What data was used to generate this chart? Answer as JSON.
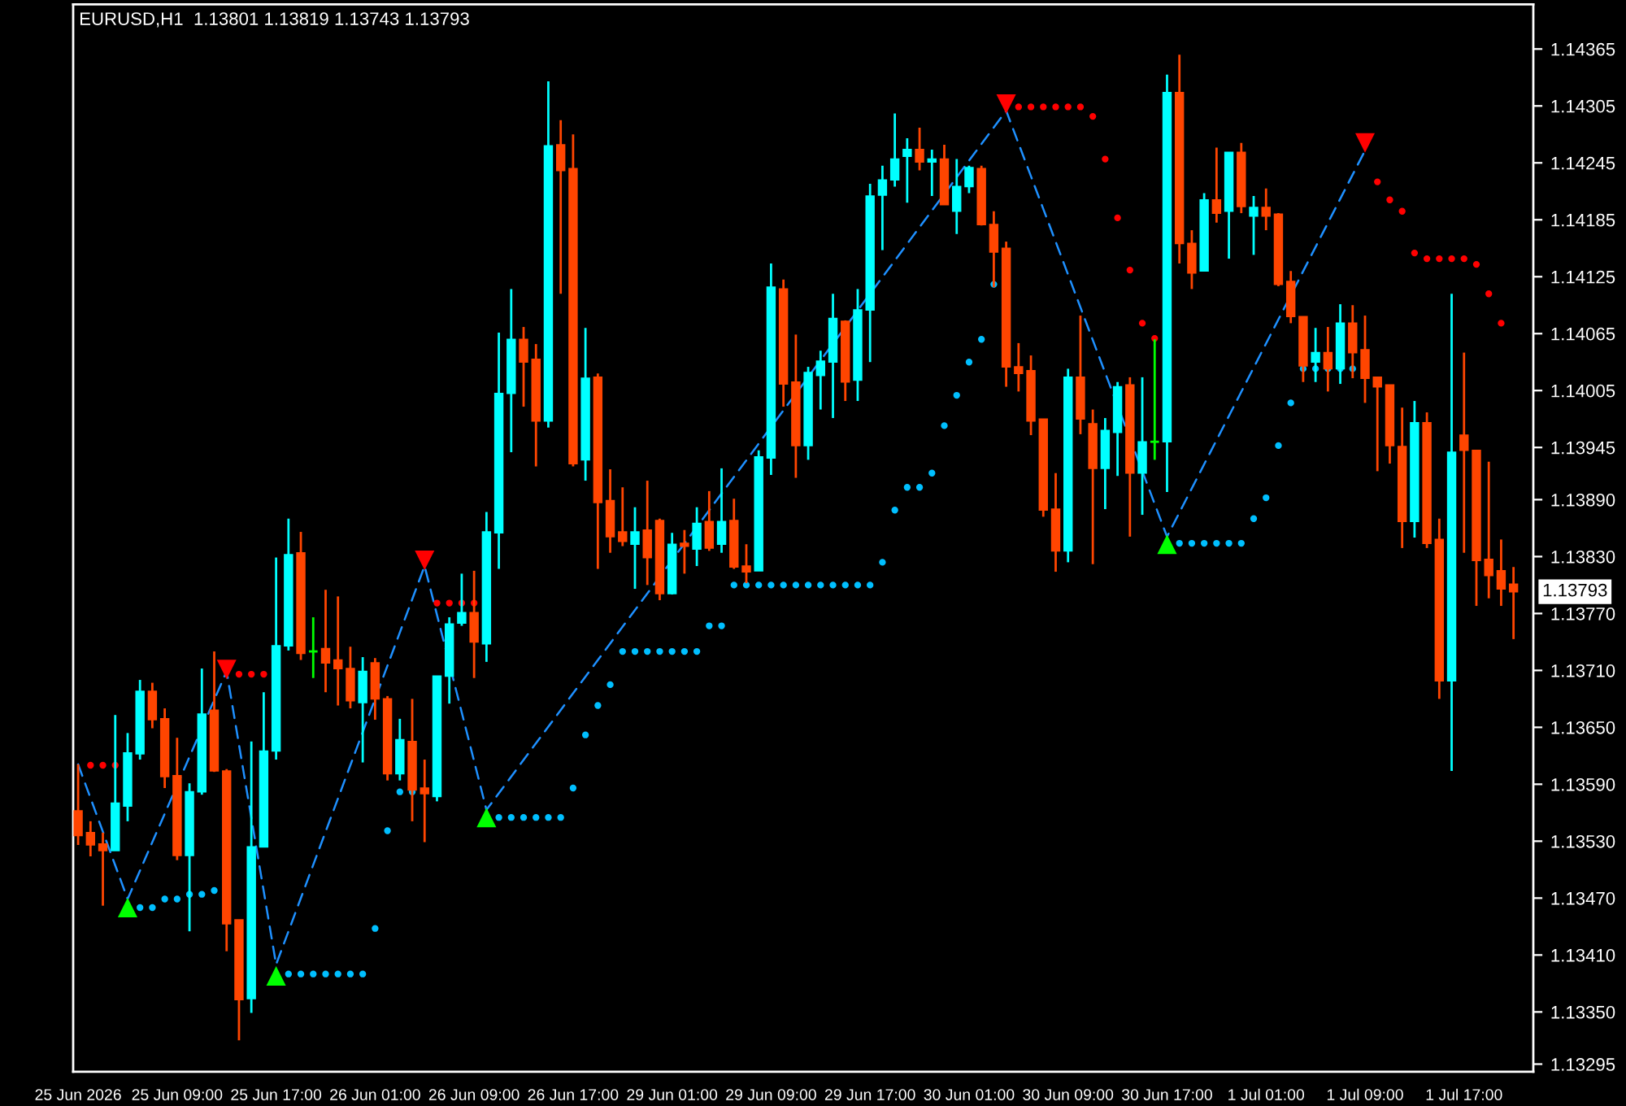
{
  "chart_data": {
    "type": "candlestick",
    "title": "EURUSD,H1  1.13801 1.13819 1.13743 1.13793",
    "categories": [
      "25 Jun 2026",
      null,
      null,
      null,
      null,
      null,
      null,
      null,
      "25 Jun 09:00",
      null,
      null,
      null,
      null,
      null,
      null,
      null,
      "25 Jun 17:00",
      null,
      null,
      null,
      null,
      null,
      null,
      null,
      "26 Jun 01:00",
      null,
      null,
      null,
      null,
      null,
      null,
      null,
      "26 Jun 09:00",
      null,
      null,
      null,
      null,
      null,
      null,
      null,
      "26 Jun 17:00",
      null,
      null,
      null,
      null,
      null,
      null,
      null,
      "29 Jun 01:00",
      null,
      null,
      null,
      null,
      null,
      null,
      null,
      "29 Jun 09:00",
      null,
      null,
      null,
      null,
      null,
      null,
      null,
      "29 Jun 17:00",
      null,
      null,
      null,
      null,
      null,
      null,
      null,
      "30 Jun 01:00",
      null,
      null,
      null,
      null,
      null,
      null,
      null,
      "30 Jun 09:00",
      null,
      null,
      null,
      null,
      null,
      null,
      null,
      "30 Jun 17:00",
      null,
      null,
      null,
      null,
      null,
      null,
      null,
      "1 Jul 01:00",
      null,
      null,
      null,
      null,
      null,
      null,
      null,
      "1 Jul 09:00",
      null,
      null,
      null,
      null,
      null,
      null,
      null,
      "1 Jul 17:00",
      null,
      null,
      null,
      null
    ],
    "ohlc": [
      [
        1.13562,
        1.13611,
        1.13526,
        1.13536
      ],
      [
        1.13539,
        1.13551,
        1.13514,
        1.13526
      ],
      [
        1.13527,
        1.13539,
        1.13462,
        1.1352
      ],
      [
        1.1352,
        1.13663,
        1.1352,
        1.1357
      ],
      [
        1.13567,
        1.13644,
        1.13551,
        1.13623
      ],
      [
        1.13622,
        1.137,
        1.13616,
        1.13688
      ],
      [
        1.13688,
        1.13697,
        1.13649,
        1.13658
      ],
      [
        1.13659,
        1.1367,
        1.13586,
        1.13598
      ],
      [
        1.13599,
        1.13639,
        1.1351,
        1.13515
      ],
      [
        1.13515,
        1.13591,
        1.13435,
        1.13582
      ],
      [
        1.13582,
        1.13712,
        1.13579,
        1.13664
      ],
      [
        1.13668,
        1.1373,
        1.13603,
        1.13604
      ],
      [
        1.13604,
        1.13606,
        1.13414,
        1.13443
      ],
      [
        1.13447,
        1.13447,
        1.1332,
        1.13363
      ],
      [
        1.13364,
        1.13635,
        1.13349,
        1.13524
      ],
      [
        1.13524,
        1.13687,
        1.13524,
        1.13625
      ],
      [
        1.13625,
        1.13829,
        1.13616,
        1.13736
      ],
      [
        1.13736,
        1.1387,
        1.13731,
        1.13832
      ],
      [
        1.13834,
        1.13856,
        1.13721,
        1.13728
      ],
      [
        1.1373,
        1.13766,
        1.13702,
        1.1373
      ],
      [
        1.13733,
        1.13795,
        1.13687,
        1.13718
      ],
      [
        1.13721,
        1.13788,
        1.13673,
        1.13712
      ],
      [
        1.13712,
        1.13735,
        1.1367,
        1.13678
      ],
      [
        1.13676,
        1.13724,
        1.13613,
        1.13709
      ],
      [
        1.13718,
        1.13723,
        1.13658,
        1.1368
      ],
      [
        1.1368,
        1.13683,
        1.13594,
        1.13601
      ],
      [
        1.13601,
        1.13659,
        1.13594,
        1.13637
      ],
      [
        1.13635,
        1.1368,
        1.13551,
        1.13584
      ],
      [
        1.13586,
        1.13616,
        1.13529,
        1.1358
      ],
      [
        1.13577,
        1.13704,
        1.13572,
        1.13704
      ],
      [
        1.13704,
        1.13766,
        1.13675,
        1.13759
      ],
      [
        1.1376,
        1.13812,
        1.13757,
        1.13771
      ],
      [
        1.13771,
        1.13815,
        1.13702,
        1.1374
      ],
      [
        1.13738,
        1.13877,
        1.13719,
        1.13856
      ],
      [
        1.13855,
        1.14066,
        1.13817,
        1.14002
      ],
      [
        1.14002,
        1.14112,
        1.1394,
        1.14059
      ],
      [
        1.14059,
        1.14072,
        1.13988,
        1.14035
      ],
      [
        1.14038,
        1.14054,
        1.13925,
        1.13973
      ],
      [
        1.13973,
        1.14331,
        1.13966,
        1.14263
      ],
      [
        1.14264,
        1.1429,
        1.14107,
        1.14237
      ],
      [
        1.14239,
        1.14275,
        1.13925,
        1.13928
      ],
      [
        1.13932,
        1.14071,
        1.1391,
        1.14018
      ],
      [
        1.14019,
        1.14023,
        1.13817,
        1.13887
      ],
      [
        1.13889,
        1.13922,
        1.13834,
        1.13851
      ],
      [
        1.13856,
        1.13903,
        1.13841,
        1.13846
      ],
      [
        1.13843,
        1.13882,
        1.13796,
        1.13856
      ],
      [
        1.13858,
        1.1391,
        1.138,
        1.13829
      ],
      [
        1.13868,
        1.1387,
        1.13784,
        1.13791
      ],
      [
        1.13791,
        1.13855,
        1.1379,
        1.13843
      ],
      [
        1.13844,
        1.13858,
        1.13812,
        1.13841
      ],
      [
        1.13838,
        1.13882,
        1.1382,
        1.13865
      ],
      [
        1.13867,
        1.13899,
        1.13836,
        1.13839
      ],
      [
        1.13843,
        1.13923,
        1.13834,
        1.13867
      ],
      [
        1.13868,
        1.13891,
        1.13817,
        1.13819
      ],
      [
        1.1382,
        1.13843,
        1.13802,
        1.13814
      ],
      [
        1.13815,
        1.13942,
        1.13815,
        1.13935
      ],
      [
        1.13934,
        1.14139,
        1.13916,
        1.14114
      ],
      [
        1.14112,
        1.14122,
        1.13988,
        1.14012
      ],
      [
        1.14014,
        1.14064,
        1.13913,
        1.13947
      ],
      [
        1.13947,
        1.1403,
        1.13932,
        1.14024
      ],
      [
        1.14021,
        1.14047,
        1.13985,
        1.14036
      ],
      [
        1.14035,
        1.14107,
        1.13976,
        1.14081
      ],
      [
        1.14078,
        1.14079,
        1.13994,
        1.14014
      ],
      [
        1.14016,
        1.14112,
        1.13994,
        1.1409
      ],
      [
        1.1409,
        1.14223,
        1.14035,
        1.1421
      ],
      [
        1.14211,
        1.14242,
        1.14153,
        1.14227
      ],
      [
        1.14227,
        1.14297,
        1.1422,
        1.14249
      ],
      [
        1.14252,
        1.14271,
        1.14203,
        1.14259
      ],
      [
        1.14259,
        1.14282,
        1.14237,
        1.14246
      ],
      [
        1.14246,
        1.14259,
        1.1421,
        1.14249
      ],
      [
        1.14249,
        1.14264,
        1.14201,
        1.14201
      ],
      [
        1.14194,
        1.14249,
        1.1417,
        1.1422
      ],
      [
        1.1422,
        1.14242,
        1.14213,
        1.1424
      ],
      [
        1.14239,
        1.14242,
        1.14179,
        1.1418
      ],
      [
        1.1418,
        1.14194,
        1.14114,
        1.14151
      ],
      [
        1.14155,
        1.14162,
        1.14009,
        1.1403
      ],
      [
        1.1403,
        1.14055,
        1.14004,
        1.14023
      ],
      [
        1.14026,
        1.14042,
        1.13958,
        1.13973
      ],
      [
        1.13975,
        1.13975,
        1.13872,
        1.13879
      ],
      [
        1.1388,
        1.13918,
        1.13814,
        1.13836
      ],
      [
        1.13836,
        1.14028,
        1.13824,
        1.14019
      ],
      [
        1.14019,
        1.14084,
        1.13959,
        1.13975
      ],
      [
        1.1397,
        1.13985,
        1.13822,
        1.13923
      ],
      [
        1.13923,
        1.13976,
        1.1388,
        1.13963
      ],
      [
        1.13961,
        1.14014,
        1.13915,
        1.14009
      ],
      [
        1.14011,
        1.14019,
        1.13851,
        1.13918
      ],
      [
        1.13918,
        1.14019,
        1.13874,
        1.13951
      ],
      [
        1.13951,
        1.14059,
        1.13932,
        1.13951
      ],
      [
        1.13951,
        1.14338,
        1.13898,
        1.14319
      ],
      [
        1.14319,
        1.14359,
        1.14139,
        1.1416
      ],
      [
        1.1416,
        1.14174,
        1.14112,
        1.14129
      ],
      [
        1.14131,
        1.14213,
        1.14131,
        1.14206
      ],
      [
        1.14206,
        1.14261,
        1.14182,
        1.14192
      ],
      [
        1.14194,
        1.14256,
        1.14144,
        1.14256
      ],
      [
        1.14256,
        1.14266,
        1.14192,
        1.14199
      ],
      [
        1.14189,
        1.1421,
        1.14148,
        1.14198
      ],
      [
        1.14198,
        1.14218,
        1.14174,
        1.14189
      ],
      [
        1.14191,
        1.14192,
        1.14115,
        1.14117
      ],
      [
        1.1412,
        1.14131,
        1.14076,
        1.14083
      ],
      [
        1.14083,
        1.14083,
        1.14014,
        1.14031
      ],
      [
        1.14035,
        1.14071,
        1.14014,
        1.14045
      ],
      [
        1.14045,
        1.14072,
        1.14004,
        1.14028
      ],
      [
        1.14028,
        1.14096,
        1.14012,
        1.14076
      ],
      [
        1.14076,
        1.14095,
        1.14018,
        1.14045
      ],
      [
        1.14048,
        1.14084,
        1.13992,
        1.14018
      ],
      [
        1.14019,
        1.14019,
        1.1392,
        1.14009
      ],
      [
        1.14011,
        1.14011,
        1.13928,
        1.13947
      ],
      [
        1.13946,
        1.13987,
        1.13839,
        1.13867
      ],
      [
        1.13867,
        1.13994,
        1.1385,
        1.13971
      ],
      [
        1.13971,
        1.13982,
        1.13839,
        1.13844
      ],
      [
        1.13848,
        1.1387,
        1.1368,
        1.13699
      ],
      [
        1.13699,
        1.14107,
        1.13604,
        1.1394
      ],
      [
        1.13958,
        1.14045,
        1.13834,
        1.13942
      ],
      [
        1.13942,
        1.13942,
        1.13778,
        1.13826
      ],
      [
        1.13827,
        1.1393,
        1.13786,
        1.1381
      ],
      [
        1.13815,
        1.13848,
        1.13778,
        1.13796
      ],
      [
        1.13801,
        1.13819,
        1.13743,
        1.13793
      ]
    ],
    "colors": [
      "#ff4500",
      "#ff4500",
      "#ff4500",
      "#00ffff",
      "#00ffff",
      "#00ffff",
      "#ff4500",
      "#ff4500",
      "#ff4500",
      "#00ffff",
      "#00ffff",
      "#ff4500",
      "#ff4500",
      "#ff4500",
      "#00ffff",
      "#00ffff",
      "#00ffff",
      "#00ffff",
      "#ff4500",
      "#00ff00",
      "#ff4500",
      "#ff4500",
      "#ff4500",
      "#00ffff",
      "#ff4500",
      "#ff4500",
      "#00ffff",
      "#ff4500",
      "#ff4500",
      "#00ffff",
      "#00ffff",
      "#00ffff",
      "#ff4500",
      "#00ffff",
      "#00ffff",
      "#00ffff",
      "#ff4500",
      "#ff4500",
      "#00ffff",
      "#ff4500",
      "#ff4500",
      "#00ffff",
      "#ff4500",
      "#ff4500",
      "#ff4500",
      "#00ffff",
      "#ff4500",
      "#ff4500",
      "#00ffff",
      "#ff4500",
      "#00ffff",
      "#ff4500",
      "#00ffff",
      "#ff4500",
      "#ff4500",
      "#00ffff",
      "#00ffff",
      "#ff4500",
      "#ff4500",
      "#00ffff",
      "#00ffff",
      "#00ffff",
      "#ff4500",
      "#00ffff",
      "#00ffff",
      "#00ffff",
      "#00ffff",
      "#00ffff",
      "#ff4500",
      "#00ffff",
      "#ff4500",
      "#00ffff",
      "#00ffff",
      "#ff4500",
      "#ff4500",
      "#ff4500",
      "#ff4500",
      "#ff4500",
      "#ff4500",
      "#ff4500",
      "#00ffff",
      "#ff4500",
      "#ff4500",
      "#00ffff",
      "#00ffff",
      "#ff4500",
      "#00ffff",
      "#00ff00",
      "#00ffff",
      "#ff4500",
      "#ff4500",
      "#00ffff",
      "#ff4500",
      "#00ffff",
      "#ff4500",
      "#00ffff",
      "#ff4500",
      "#ff4500",
      "#ff4500",
      "#ff4500",
      "#00ffff",
      "#ff4500",
      "#00ffff",
      "#ff4500",
      "#ff4500",
      "#ff4500",
      "#ff4500",
      "#ff4500",
      "#00ffff",
      "#ff4500",
      "#ff4500",
      "#00ffff",
      "#ff4500",
      "#ff4500",
      "#ff4500",
      "#ff4500",
      "#ff4500"
    ],
    "series": [
      {
        "type": "line",
        "color": "#1e90ff",
        "line_style": "dashed",
        "marker": "none",
        "values": [
          1.13611,
          null,
          null,
          null,
          1.13469,
          null,
          null,
          null,
          null,
          null,
          null,
          null,
          1.13709,
          null,
          null,
          null,
          1.134,
          null,
          null,
          null,
          null,
          null,
          null,
          null,
          null,
          null,
          null,
          null,
          1.1382,
          null,
          null,
          null,
          null,
          1.13563,
          null,
          null,
          null,
          null,
          null,
          null,
          null,
          null,
          null,
          null,
          null,
          null,
          null,
          null,
          null,
          null,
          null,
          null,
          null,
          null,
          null,
          null,
          null,
          null,
          null,
          null,
          null,
          null,
          null,
          null,
          null,
          null,
          null,
          null,
          null,
          null,
          null,
          null,
          null,
          null,
          null,
          1.143,
          null,
          null,
          null,
          null,
          null,
          null,
          null,
          null,
          null,
          null,
          null,
          null,
          1.13851,
          null,
          null,
          null,
          null,
          null,
          null,
          null,
          null,
          null,
          null,
          null,
          null,
          null,
          null,
          null,
          1.14258,
          null,
          null,
          null,
          null,
          null,
          null,
          null,
          null,
          null,
          null,
          null,
          null
        ]
      },
      {
        "type": "scatter",
        "color": "#00ff00",
        "marker": "triangle-up",
        "values": [
          null,
          null,
          null,
          null,
          1.1346,
          null,
          null,
          null,
          null,
          null,
          null,
          null,
          null,
          null,
          null,
          null,
          1.13388,
          null,
          null,
          null,
          null,
          null,
          null,
          null,
          null,
          null,
          null,
          null,
          null,
          null,
          null,
          null,
          null,
          1.13555,
          null,
          null,
          null,
          null,
          null,
          null,
          null,
          null,
          null,
          null,
          null,
          null,
          null,
          null,
          null,
          null,
          null,
          null,
          null,
          null,
          null,
          null,
          null,
          null,
          null,
          null,
          null,
          null,
          null,
          null,
          null,
          null,
          null,
          null,
          null,
          null,
          null,
          null,
          null,
          null,
          null,
          null,
          null,
          null,
          null,
          null,
          null,
          null,
          null,
          null,
          null,
          null,
          null,
          null,
          1.13843,
          null,
          null,
          null,
          null,
          null,
          null,
          null,
          null,
          null,
          null,
          null,
          null,
          null,
          null,
          null,
          null,
          null,
          null,
          null,
          null,
          null,
          null,
          null,
          null,
          null,
          null,
          null,
          null
        ]
      },
      {
        "type": "scatter",
        "color": "#ff0000",
        "marker": "triangle-down",
        "values": [
          null,
          null,
          null,
          null,
          null,
          null,
          null,
          null,
          null,
          null,
          null,
          null,
          1.13711,
          null,
          null,
          null,
          null,
          null,
          null,
          null,
          null,
          null,
          null,
          null,
          null,
          null,
          null,
          null,
          1.13826,
          null,
          null,
          null,
          null,
          null,
          null,
          null,
          null,
          null,
          null,
          null,
          null,
          null,
          null,
          null,
          null,
          null,
          null,
          null,
          null,
          null,
          null,
          null,
          null,
          null,
          null,
          null,
          null,
          null,
          null,
          null,
          null,
          null,
          null,
          null,
          null,
          null,
          null,
          null,
          null,
          null,
          null,
          null,
          null,
          null,
          null,
          1.14307,
          null,
          null,
          null,
          null,
          null,
          null,
          null,
          null,
          null,
          null,
          null,
          null,
          null,
          null,
          null,
          null,
          null,
          null,
          null,
          null,
          null,
          null,
          null,
          null,
          null,
          null,
          null,
          null,
          1.14266,
          null,
          null,
          null,
          null,
          null,
          null,
          null,
          null,
          null,
          null,
          null,
          null
        ]
      },
      {
        "type": "scatter",
        "color": "#ff0000",
        "marker": "circle",
        "values": [
          null,
          1.1361,
          1.1361,
          1.1361,
          null,
          null,
          null,
          null,
          null,
          null,
          null,
          null,
          null,
          1.13706,
          1.13706,
          1.13706,
          null,
          null,
          null,
          null,
          null,
          null,
          null,
          null,
          null,
          null,
          null,
          null,
          null,
          1.13781,
          1.13781,
          1.13781,
          1.13781,
          null,
          null,
          null,
          null,
          null,
          null,
          null,
          null,
          null,
          null,
          null,
          null,
          null,
          null,
          null,
          null,
          null,
          null,
          null,
          null,
          null,
          null,
          null,
          null,
          null,
          null,
          null,
          null,
          null,
          null,
          null,
          null,
          null,
          null,
          null,
          null,
          null,
          null,
          null,
          null,
          null,
          null,
          null,
          1.14304,
          1.14304,
          1.14304,
          1.14304,
          1.14304,
          1.14304,
          1.14294,
          1.14249,
          1.14187,
          1.14132,
          1.14076,
          1.1406,
          null,
          null,
          null,
          null,
          null,
          null,
          null,
          null,
          null,
          null,
          null,
          null,
          null,
          null,
          null,
          null,
          null,
          1.14225,
          1.14206,
          1.14194,
          1.1415,
          1.14144,
          1.14144,
          1.14144,
          1.14144,
          1.14138,
          1.14107,
          1.14076,
          null
        ]
      },
      {
        "type": "scatter",
        "color": "#00bfff",
        "marker": "circle",
        "values": [
          null,
          null,
          null,
          null,
          null,
          1.1346,
          1.1346,
          1.13469,
          1.13469,
          1.13474,
          1.13474,
          1.13478,
          null,
          null,
          null,
          null,
          null,
          1.1339,
          1.1339,
          1.1339,
          1.1339,
          1.1339,
          1.1339,
          1.1339,
          1.13438,
          1.13541,
          1.13582,
          1.13582,
          null,
          null,
          null,
          null,
          null,
          null,
          1.13555,
          1.13555,
          1.13555,
          1.13555,
          1.13555,
          1.13555,
          1.13586,
          1.13642,
          1.13673,
          1.13695,
          1.1373,
          1.1373,
          1.1373,
          1.1373,
          1.1373,
          1.1373,
          1.1373,
          1.13757,
          1.13757,
          1.138,
          1.138,
          1.138,
          1.138,
          1.138,
          1.138,
          1.138,
          1.138,
          1.138,
          1.138,
          1.138,
          1.138,
          1.13824,
          1.13879,
          1.13903,
          1.13903,
          1.13918,
          1.13968,
          1.14,
          1.14035,
          1.14059,
          1.14117,
          null,
          null,
          null,
          null,
          null,
          null,
          null,
          null,
          null,
          null,
          null,
          null,
          null,
          null,
          1.13844,
          1.13844,
          1.13844,
          1.13844,
          1.13844,
          1.13844,
          1.1387,
          1.13892,
          1.13947,
          1.13992,
          1.14028,
          1.14028,
          1.14028,
          1.14028,
          1.14028,
          null,
          null,
          null,
          null,
          null,
          null,
          null,
          null,
          null,
          null,
          null,
          null,
          null
        ]
      }
    ],
    "ylim": [
      1.13287,
      1.14412
    ],
    "yticks": [
      1.14365,
      1.14305,
      1.14245,
      1.14185,
      1.14125,
      1.14065,
      1.14005,
      1.13945,
      {
        "value": 1.1389,
        "label": "1.13890"
      },
      {
        "value": 1.1383,
        "label": "1.13830"
      },
      {
        "value": 1.1377,
        "label": "1.13770"
      },
      {
        "value": 1.1371,
        "label": "1.13710"
      },
      {
        "value": 1.1365,
        "label": "1.13650"
      },
      {
        "value": 1.1359,
        "label": "1.13590"
      },
      {
        "value": 1.1353,
        "label": "1.13530"
      },
      {
        "value": 1.1347,
        "label": "1.13470"
      },
      {
        "value": 1.1341,
        "label": "1.13410"
      },
      {
        "value": 1.1335,
        "label": "1.13350"
      },
      1.13295
    ],
    "annotations": [
      "1.13793"
    ],
    "grid": false,
    "legend": false
  }
}
